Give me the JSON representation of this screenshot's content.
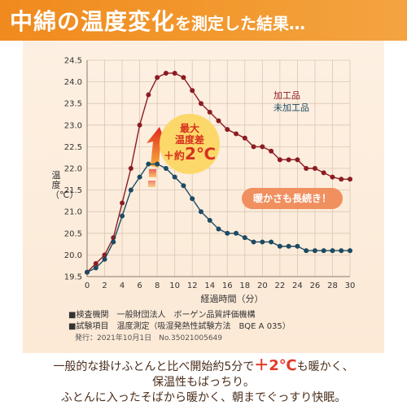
{
  "header": {
    "title_big": "中綿の温度変化",
    "title_small": "を測定した結果…"
  },
  "chart_data": {
    "type": "line",
    "x": [
      0,
      1,
      2,
      3,
      4,
      5,
      6,
      7,
      8,
      9,
      10,
      11,
      12,
      13,
      14,
      15,
      16,
      17,
      18,
      19,
      20,
      21,
      22,
      23,
      24,
      25,
      26,
      27,
      28,
      29,
      30
    ],
    "series": [
      {
        "name": "加工品",
        "color": "#8c1c22",
        "values": [
          19.6,
          19.8,
          20.0,
          20.4,
          21.2,
          22.0,
          23.0,
          23.7,
          24.1,
          24.2,
          24.2,
          24.1,
          23.8,
          23.5,
          23.3,
          23.1,
          22.9,
          22.8,
          22.7,
          22.5,
          22.5,
          22.4,
          22.2,
          22.2,
          22.2,
          22.0,
          22.0,
          21.9,
          21.8,
          21.75,
          21.75
        ]
      },
      {
        "name": "未加工品",
        "color": "#1d4a63",
        "values": [
          19.6,
          19.7,
          19.9,
          20.3,
          20.9,
          21.5,
          21.8,
          22.1,
          22.1,
          22.0,
          21.8,
          21.6,
          21.3,
          21.0,
          20.8,
          20.6,
          20.5,
          20.5,
          20.4,
          20.3,
          20.3,
          20.3,
          20.2,
          20.2,
          20.2,
          20.1,
          20.1,
          20.1,
          20.1,
          20.1,
          20.1
        ]
      }
    ],
    "xlabel": "経過時間（分）",
    "ylabel": "温度（℃）",
    "xlim": [
      0,
      30
    ],
    "ylim": [
      19.5,
      24.5
    ],
    "x_ticks": [
      "0",
      "2",
      "4",
      "6",
      "8",
      "10",
      "12",
      "14",
      "16",
      "18",
      "20",
      "22",
      "24",
      "26",
      "28",
      "30"
    ],
    "y_ticks": [
      "19.5",
      "20.0",
      "20.5",
      "21.0",
      "21.5",
      "22.0",
      "22.5",
      "23.0",
      "23.5",
      "24.0",
      "24.5"
    ],
    "grid": true,
    "legend": "top-right"
  },
  "callouts": {
    "badge_line1": "最大",
    "badge_line2": "温度差",
    "badge_prefix": "＋約",
    "badge_value": "2℃",
    "pill": "暖かさも長続き！"
  },
  "info": {
    "line1": "■検査機関　一般財団法人　ボーゲン品質評価機構",
    "line2": "■試験項目　温度測定（吸湿発熱性試験方法　BQE A 035）",
    "line3": "発行：2021年10月1日　No.35021005649"
  },
  "footer": {
    "line1_pre": "一般的な掛けふとんと比べ開始約5分で",
    "line1_accent": "＋2℃",
    "line1_post": "も暖かく、",
    "line2": "保温性もばっちり。",
    "line3": "ふとんに入ったそばから暖かく、朝までぐっすり快眠。"
  },
  "colors": {
    "header": "#f08a1e",
    "panel": "#fdf0e2",
    "processed": "#8c1c22",
    "unprocessed": "#1d4a63",
    "badge": "#fcd86a",
    "pill": "#f0905f"
  }
}
